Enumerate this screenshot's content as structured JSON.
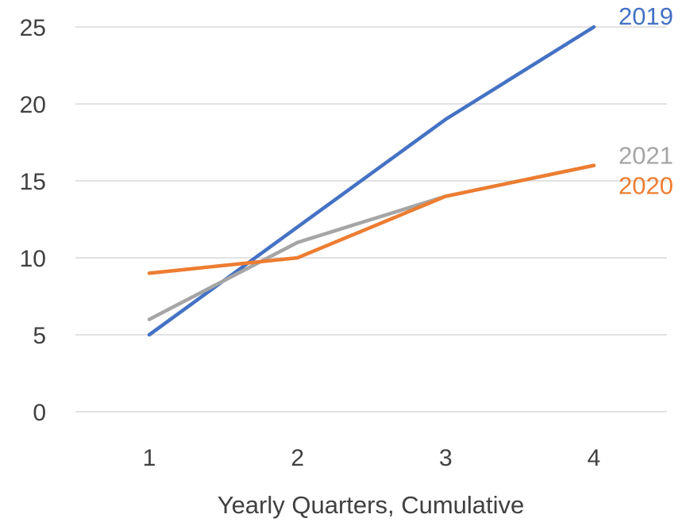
{
  "chart_data": {
    "type": "line",
    "title": "",
    "xlabel": "Yearly Quarters, Cumulative",
    "ylabel": "",
    "x": [
      1,
      2,
      3,
      4
    ],
    "xticks": [
      "1",
      "2",
      "3",
      "4"
    ],
    "ylim": [
      0,
      25
    ],
    "yticks": [
      0,
      5,
      10,
      15,
      20,
      25
    ],
    "grid": true,
    "legend": "none (series names labelled at line ends)",
    "series": [
      {
        "name": "2019",
        "color": "#4472c4",
        "values": [
          5,
          12,
          19,
          25
        ]
      },
      {
        "name": "2020",
        "color": "#ed7d31",
        "values": [
          9,
          10,
          14,
          16
        ]
      },
      {
        "name": "2021",
        "color": "#a5a5a5",
        "values": [
          6,
          11,
          14,
          16
        ]
      }
    ]
  }
}
